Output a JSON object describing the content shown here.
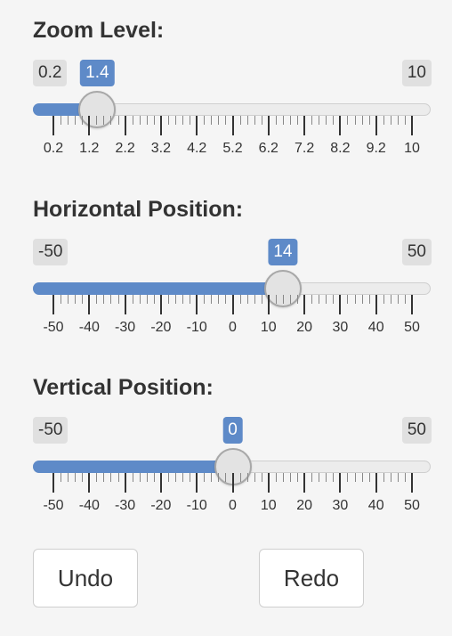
{
  "sliders": [
    {
      "id": "zoom",
      "label": "Zoom Level:",
      "min": 0.2,
      "max": 10,
      "value": 1.4,
      "min_label": "0.2",
      "max_label": "10",
      "value_label": "1.4",
      "tick_labels": [
        "0.2",
        "1.2",
        "2.2",
        "3.2",
        "4.2",
        "5.2",
        "6.2",
        "7.2",
        "8.2",
        "9.2",
        "10"
      ]
    },
    {
      "id": "horizontal",
      "label": "Horizontal Position:",
      "min": -50,
      "max": 50,
      "value": 14,
      "min_label": "-50",
      "max_label": "50",
      "value_label": "14",
      "tick_labels": [
        "-50",
        "-40",
        "-30",
        "-20",
        "-10",
        "0",
        "10",
        "20",
        "30",
        "40",
        "50"
      ]
    },
    {
      "id": "vertical",
      "label": "Vertical Position:",
      "min": -50,
      "max": 50,
      "value": 0,
      "min_label": "-50",
      "max_label": "50",
      "value_label": "0",
      "tick_labels": [
        "-50",
        "-40",
        "-30",
        "-20",
        "-10",
        "0",
        "10",
        "20",
        "30",
        "40",
        "50"
      ]
    }
  ],
  "buttons": {
    "undo_label": "Undo",
    "redo_label": "Redo"
  },
  "colors": {
    "accent": "#5e8ac8",
    "background": "#f5f5f5",
    "badge_gray": "#e0e0e0"
  }
}
